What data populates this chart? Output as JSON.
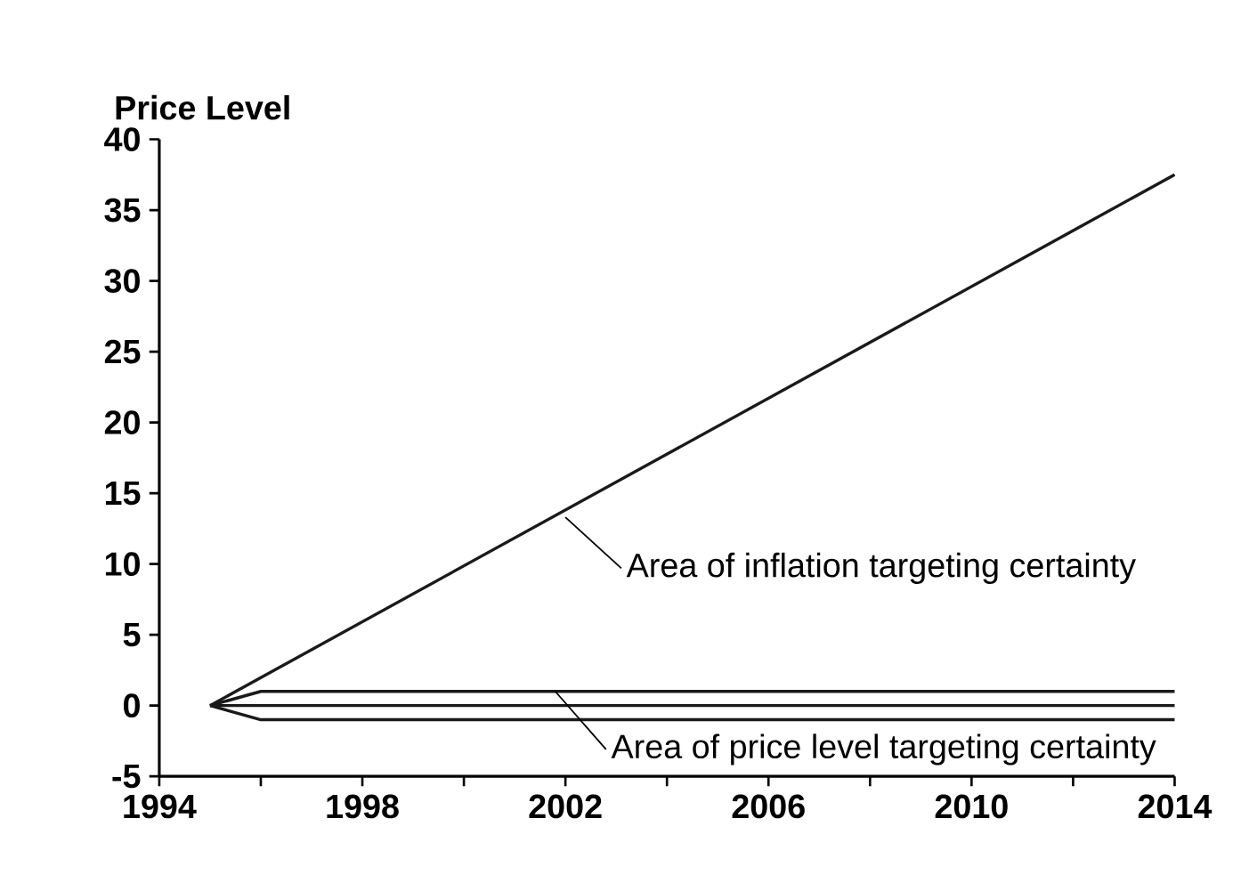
{
  "chart_data": {
    "type": "line",
    "ylabel": "Price Level",
    "series": [
      {
        "color": "#1a1a1a",
        "x": [
          1995,
          2014
        ],
        "values": [
          0,
          37.5
        ]
      },
      {
        "color": "#1a1a1a",
        "x": [
          1995,
          2014
        ],
        "values": [
          0,
          0
        ]
      },
      {
        "color": "#1a1a1a",
        "x": [
          1995,
          1996,
          2014
        ],
        "values": [
          0,
          1,
          1
        ]
      },
      {
        "color": "#1a1a1a",
        "x": [
          1995,
          1996,
          2014
        ],
        "values": [
          0,
          -1,
          -1
        ]
      }
    ],
    "xlim": [
      1994,
      2014
    ],
    "ylim": [
      -5,
      40
    ],
    "xticks": [
      1994,
      {
        "value": 1996,
        "label": null
      },
      1998,
      {
        "value": 2000,
        "label": null
      },
      2002,
      {
        "value": 2004,
        "label": null
      },
      2006,
      {
        "value": 2008,
        "label": null
      },
      2010,
      {
        "value": 2012,
        "label": null
      },
      2014
    ],
    "yticks": [
      -5,
      0,
      5,
      10,
      15,
      20,
      25,
      30,
      35,
      40
    ],
    "annotations": [
      {
        "text": "Area of inflation targeting certainty",
        "x": 2002,
        "y": 13.3
      },
      {
        "text": "Area of price level targeting certainty",
        "x": 2001.8,
        "y": 1
      }
    ],
    "marker": "none",
    "line_style": "solid"
  }
}
